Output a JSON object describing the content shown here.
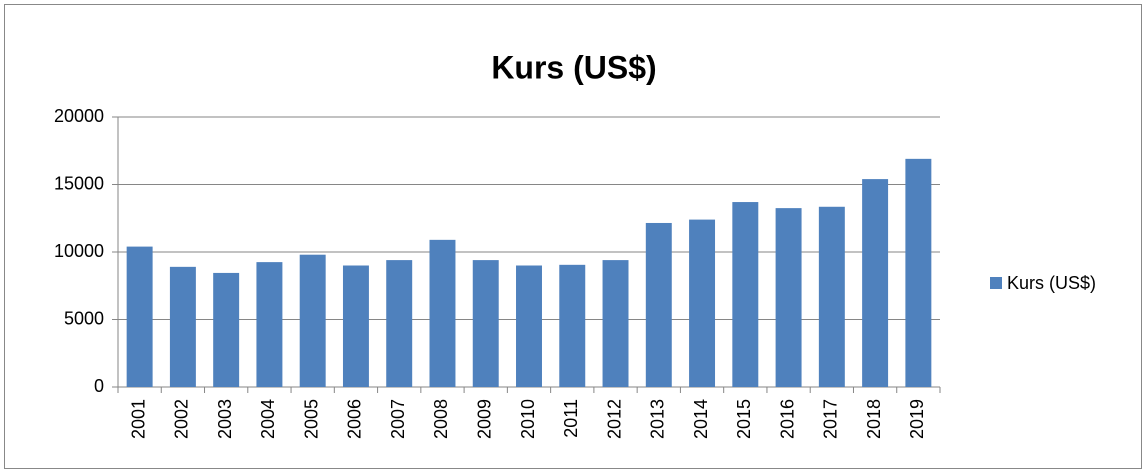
{
  "chart_data": {
    "type": "bar",
    "title": "Kurs (US$)",
    "categories": [
      "2001",
      "2002",
      "2003",
      "2004",
      "2005",
      "2006",
      "2007",
      "2008",
      "2009",
      "2010",
      "2011",
      "2012",
      "2013",
      "2014",
      "2015",
      "2016",
      "2017",
      "2018",
      "2019"
    ],
    "series": [
      {
        "name": "Kurs (US$)",
        "color": "#4f81bd",
        "values": [
          10400,
          8900,
          8450,
          9250,
          9800,
          9000,
          9400,
          10900,
          9400,
          9000,
          9050,
          9400,
          12150,
          12400,
          13700,
          13250,
          13350,
          15400,
          16900
        ]
      }
    ],
    "ylim": [
      0,
      20000
    ],
    "yticks": [
      0,
      5000,
      10000,
      15000,
      20000
    ],
    "grid": true,
    "legend": "right"
  }
}
